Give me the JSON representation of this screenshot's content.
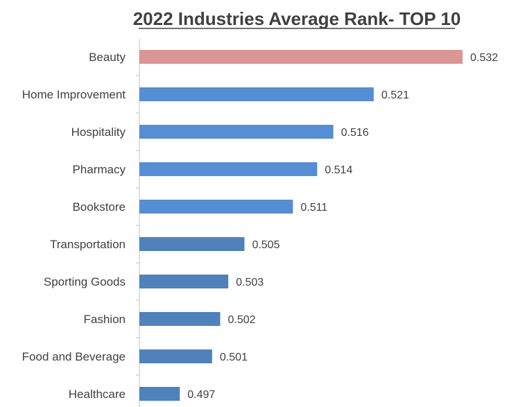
{
  "chart_data": {
    "type": "bar",
    "orientation": "horizontal",
    "title": "2022 Industries Average Rank- TOP 10",
    "xlabel": "",
    "ylabel": "",
    "grid": false,
    "legend": "none",
    "categories": [
      "Beauty",
      "Home Improvement",
      "Hospitality",
      "Pharmacy",
      "Bookstore",
      "Transportation",
      "Sporting Goods",
      "Fashion",
      "Food and Beverage",
      "Healthcare"
    ],
    "values": [
      0.532,
      0.521,
      0.516,
      0.514,
      0.511,
      0.505,
      0.503,
      0.502,
      0.501,
      0.497
    ],
    "data_labels": [
      "0.532",
      "0.521",
      "0.516",
      "0.514",
      "0.511",
      "0.505",
      "0.503",
      "0.502",
      "0.501",
      "0.497"
    ],
    "xlim": [
      0.492,
      0.532
    ],
    "colors": {
      "highlight": "#d99694",
      "group_top": "#558ed5",
      "group_rest": "#4f81bd",
      "axis": "#bfbfbf",
      "text": "#404040"
    },
    "bar_groups": [
      "highlight",
      "group_top",
      "group_top",
      "group_top",
      "group_top",
      "group_rest",
      "group_rest",
      "group_rest",
      "group_rest",
      "group_rest"
    ]
  }
}
